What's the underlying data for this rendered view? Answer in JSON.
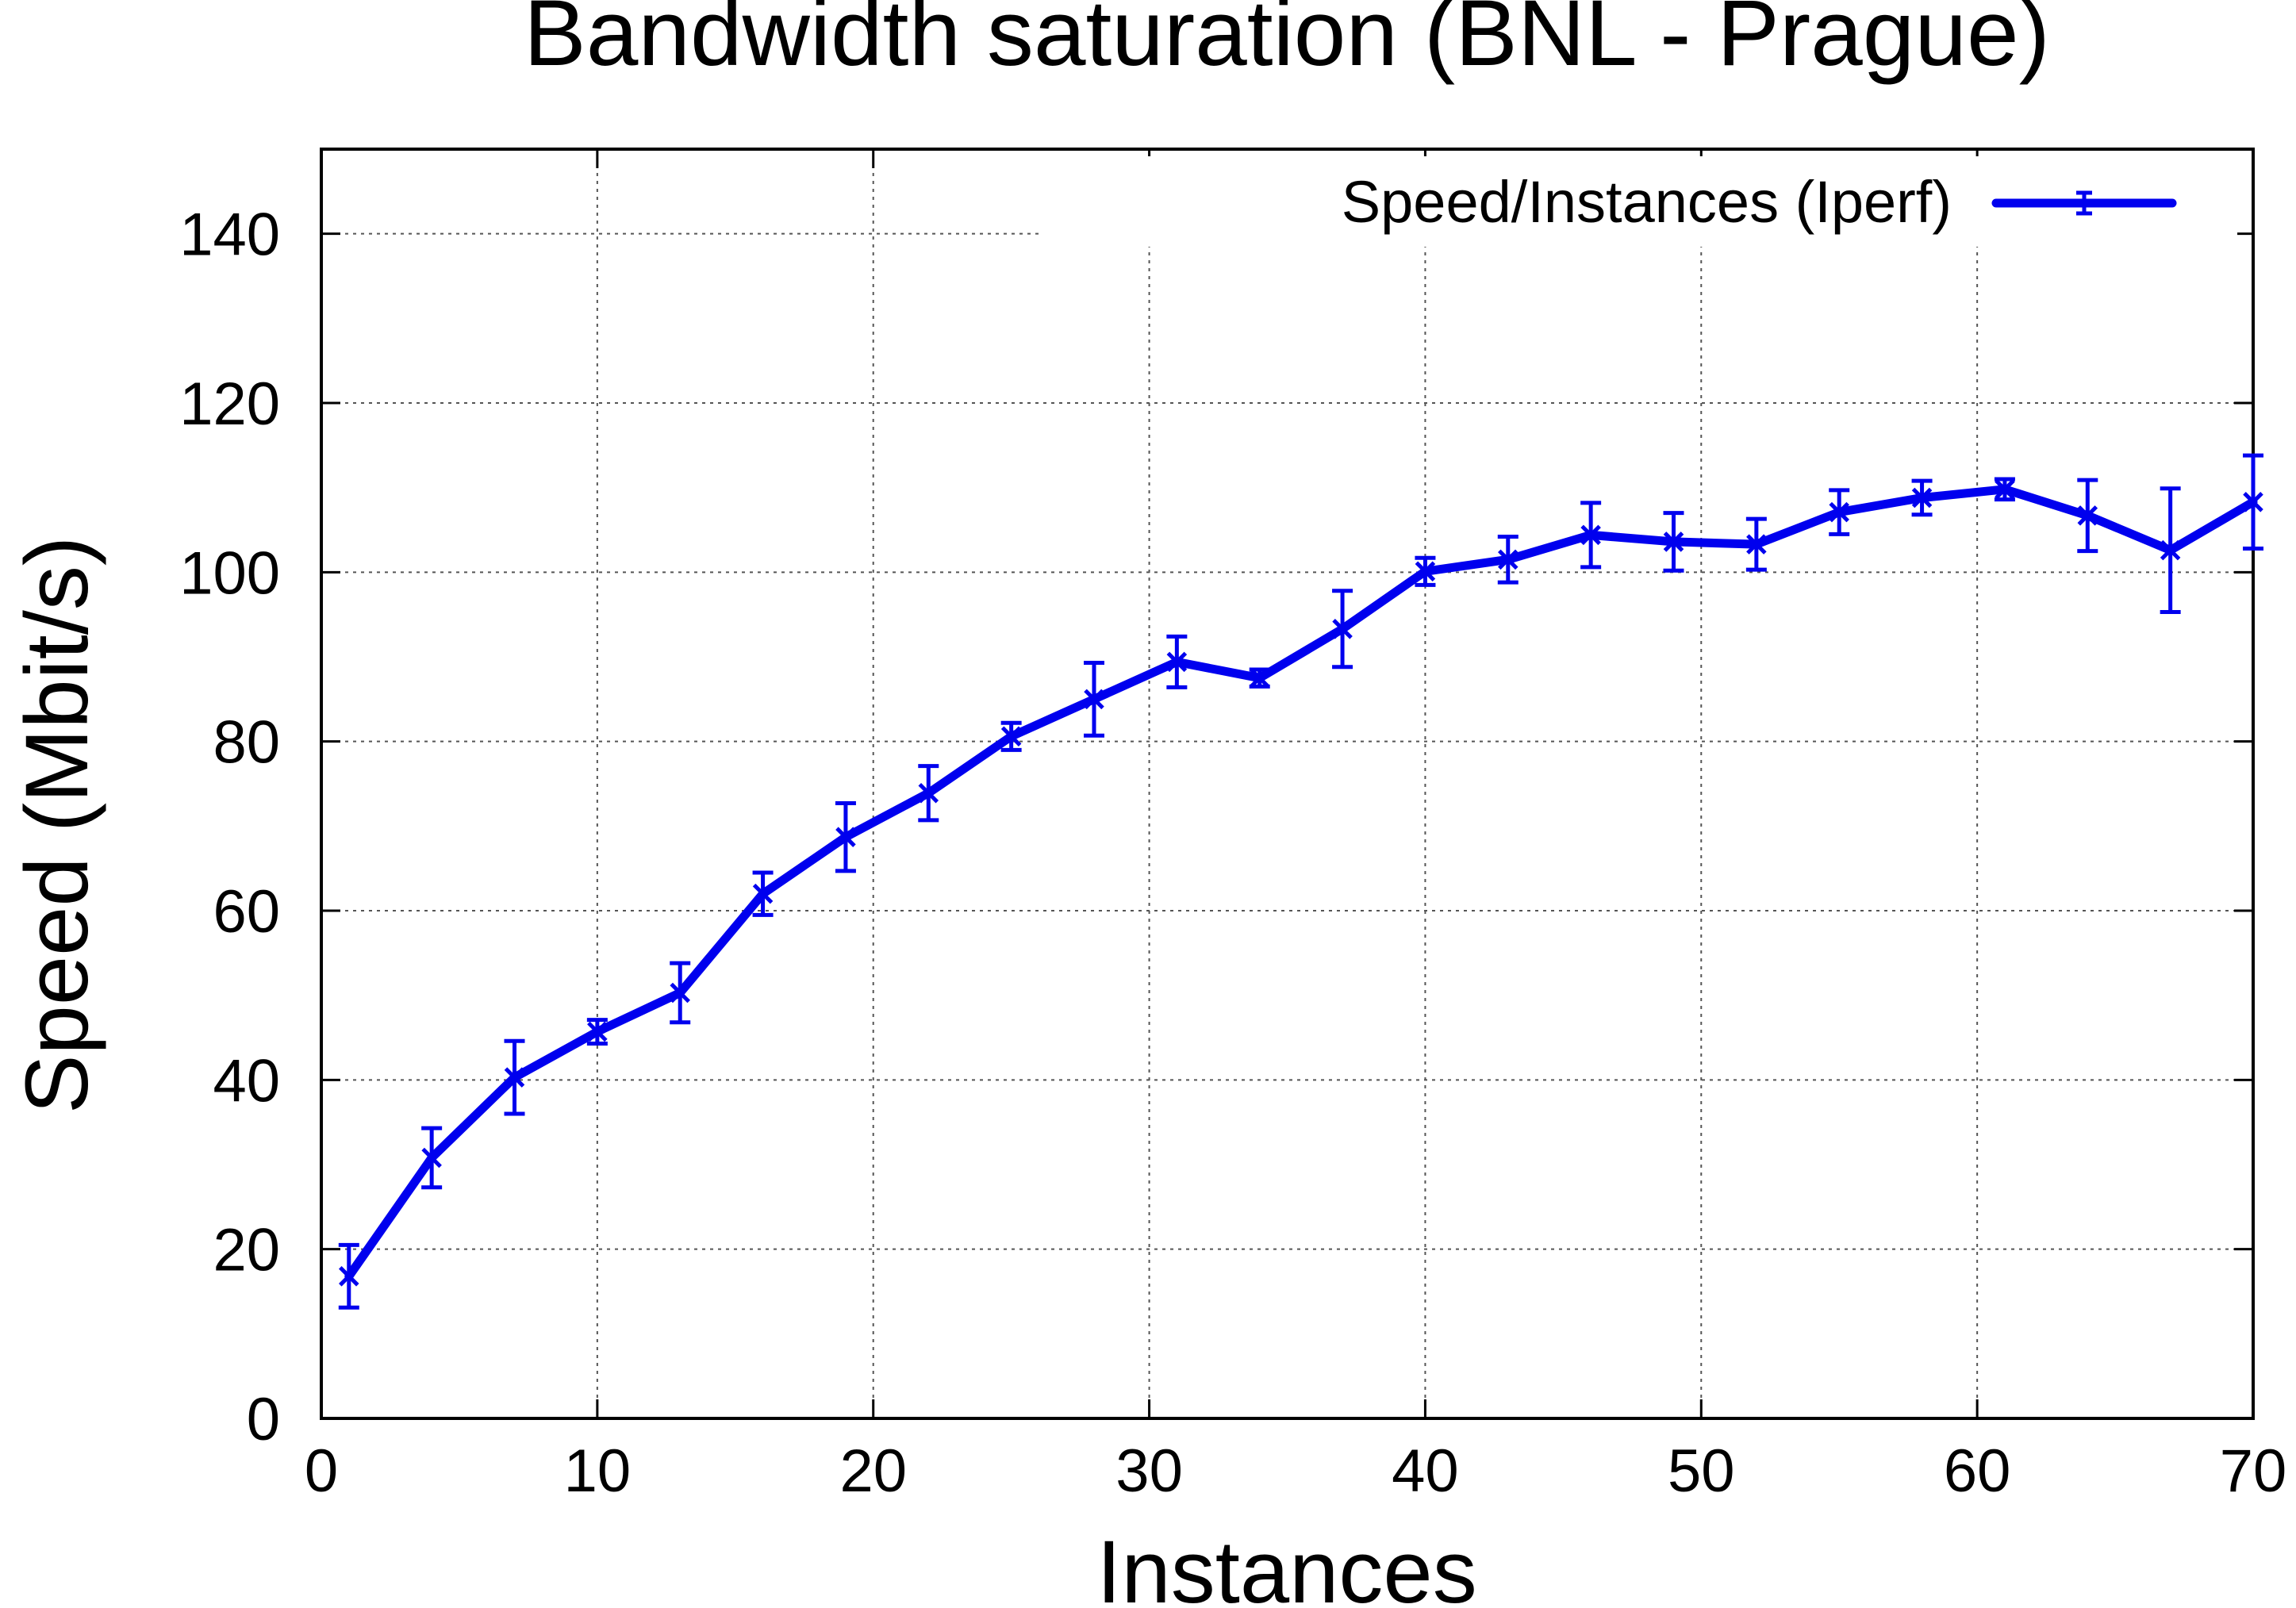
{
  "chart_data": {
    "type": "line",
    "title": "Bandwidth saturation (BNL - Prague)",
    "xlabel": "Instances",
    "ylabel": "Speed (Mbit/s)",
    "xlim": [
      0,
      70
    ],
    "ylim": [
      0,
      150
    ],
    "xticks": [
      0,
      10,
      20,
      30,
      40,
      50,
      60,
      70
    ],
    "yticks": [
      0,
      20,
      40,
      60,
      80,
      100,
      120,
      140
    ],
    "grid": true,
    "legend_position": "top-right",
    "series": [
      {
        "name": "Speed/Instances (Iperf)",
        "color": "#0000ee",
        "x": [
          1,
          4,
          7,
          10,
          13,
          16,
          19,
          22,
          25,
          28,
          31,
          34,
          37,
          40,
          43,
          46,
          49,
          52,
          55,
          58,
          61,
          64,
          67,
          70
        ],
        "y": [
          16.8,
          30.8,
          40.3,
          45.7,
          50.3,
          62.0,
          68.7,
          73.9,
          80.6,
          85.0,
          89.4,
          87.5,
          93.3,
          100.1,
          101.5,
          104.4,
          103.6,
          103.3,
          107.1,
          108.8,
          109.8,
          106.7,
          102.6,
          108.3
        ],
        "err": [
          3.7,
          3.5,
          4.3,
          1.4,
          3.5,
          2.5,
          4.0,
          3.2,
          1.6,
          4.3,
          3.0,
          1.0,
          4.5,
          1.6,
          2.7,
          3.8,
          3.4,
          3.0,
          2.6,
          2.0,
          1.2,
          4.2,
          7.3,
          5.5
        ]
      }
    ]
  }
}
